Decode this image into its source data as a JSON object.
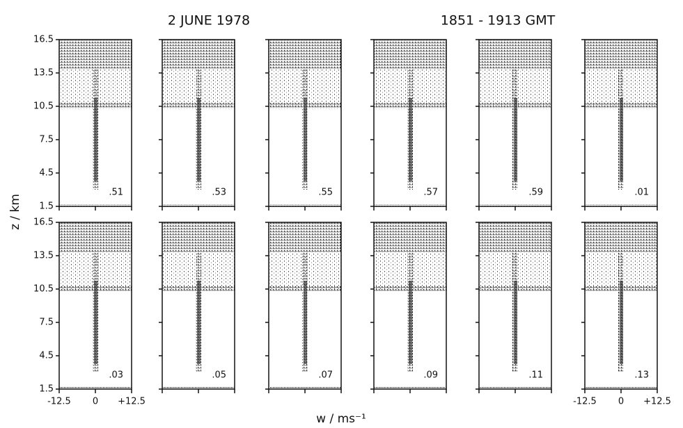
{
  "chart_data": {
    "type": "spectra",
    "title": "2 JUNE 1978",
    "subtitle": "1851 - 1913 GMT",
    "x_label": "w / ms⁻¹",
    "y_label": "z / km",
    "xlim": [
      -12.5,
      12.5
    ],
    "ylim": [
      1.5,
      16.5
    ],
    "xticks": [
      -12.5,
      0,
      {
        "value": 12.5,
        "label": "+12.5"
      }
    ],
    "yticks": [
      1.5,
      4.5,
      7.5,
      10.5,
      13.5,
      16.5
    ],
    "panels": [
      ".51",
      ".53",
      ".55",
      ".57",
      ".59",
      ".01",
      ".03",
      ".05",
      ".07",
      ".09",
      ".11",
      ".13"
    ]
  }
}
